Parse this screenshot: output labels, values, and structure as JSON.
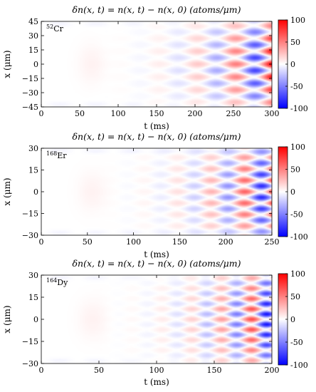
{
  "chart_data": [
    {
      "type": "heatmap",
      "title": "δn(x, t) = n(x, t) − n(x, 0)   (atoms/μm)",
      "xlabel": "t (ms)",
      "ylabel": "x (μm)",
      "isotope_mass": "52",
      "isotope_element": "Cr",
      "xlim": [
        0,
        300
      ],
      "ylim": [
        -45,
        45
      ],
      "xticks": [
        0,
        50,
        100,
        150,
        200,
        250,
        300
      ],
      "yticks": [
        -45,
        -30,
        -15,
        0,
        15,
        30,
        45
      ],
      "colorbar": {
        "range": [
          -100,
          100
        ],
        "ticks": [
          100,
          50,
          0,
          -50,
          -100
        ]
      },
      "colors": {
        "positive": "#ff0000",
        "zero": "#ffffff",
        "negative": "#0000ff"
      }
    },
    {
      "type": "heatmap",
      "title": "δn(x, t) = n(x, t) − n(x, 0)   (atoms/μm)",
      "xlabel": "t (ms)",
      "ylabel": "x (μm)",
      "isotope_mass": "168",
      "isotope_element": "Er",
      "xlim": [
        0,
        250
      ],
      "ylim": [
        -30,
        30
      ],
      "xticks": [
        0,
        50,
        100,
        150,
        200,
        250
      ],
      "yticks": [
        -30,
        -15,
        0,
        15,
        30
      ],
      "colorbar": {
        "range": [
          -100,
          100
        ],
        "ticks": [
          100,
          50,
          0,
          -50,
          -100
        ]
      },
      "colors": {
        "positive": "#ff0000",
        "zero": "#ffffff",
        "negative": "#0000ff"
      }
    },
    {
      "type": "heatmap",
      "title": "δn(x, t) = n(x, t) − n(x, 0)   (atoms/μm)",
      "xlabel": "t (ms)",
      "ylabel": "x (μm)",
      "isotope_mass": "164",
      "isotope_element": "Dy",
      "xlim": [
        0,
        200
      ],
      "ylim": [
        -30,
        30
      ],
      "xticks": [
        0,
        50,
        100,
        150,
        200
      ],
      "yticks": [
        -30,
        -15,
        0,
        15,
        30
      ],
      "colorbar": {
        "range": [
          -100,
          100
        ],
        "ticks": [
          100,
          50,
          0,
          -50,
          -100
        ]
      },
      "colors": {
        "positive": "#ff0000",
        "zero": "#ffffff",
        "negative": "#0000ff"
      }
    }
  ]
}
